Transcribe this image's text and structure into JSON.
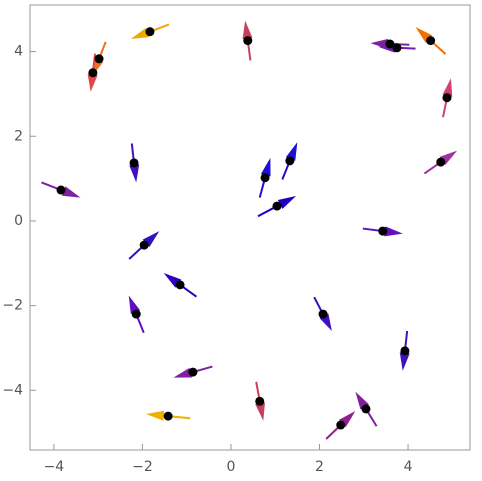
{
  "chart_data": {
    "type": "vector",
    "xlim": [
      -4.54,
      5.4
    ],
    "ylim": [
      -5.41,
      5.1
    ],
    "xticks": [
      {
        "value": -4,
        "label": "−4"
      },
      {
        "value": -2,
        "label": "−2"
      },
      0,
      2,
      4
    ],
    "yticks": [
      {
        "value": -4,
        "label": "−4"
      },
      {
        "value": -2,
        "label": "−2"
      },
      0,
      2,
      4
    ],
    "point_color": "#000000",
    "x": [
      -1.83,
      -2.98,
      -3.12,
      0.38,
      3.59,
      3.75,
      4.51,
      4.88,
      4.74,
      -2.19,
      -3.84,
      0.77,
      1.33,
      1.04,
      3.43,
      -1.96,
      -1.15,
      -2.14,
      2.08,
      3.93,
      -0.86,
      -1.42,
      0.65,
      2.48,
      3.05
    ],
    "y": [
      4.47,
      3.83,
      3.5,
      4.26,
      4.18,
      4.09,
      4.26,
      2.91,
      1.39,
      1.37,
      0.73,
      1.02,
      1.42,
      0.35,
      -0.24,
      -0.57,
      -1.51,
      -2.2,
      -2.2,
      -3.07,
      -3.57,
      -4.61,
      -4.26,
      -4.82,
      -4.44
    ],
    "dx": [
      -0.43,
      -0.15,
      -0.05,
      -0.06,
      -0.44,
      -0.42,
      -0.34,
      0.09,
      0.37,
      0.05,
      0.44,
      0.12,
      0.17,
      0.43,
      0.45,
      0.34,
      -0.37,
      -0.17,
      0.2,
      -0.05,
      -0.44,
      -0.5,
      0.08,
      0.33,
      -0.24
    ],
    "dy": [
      -0.17,
      -0.4,
      -0.45,
      0.47,
      0.02,
      0.02,
      0.32,
      0.46,
      0.27,
      -0.46,
      -0.18,
      0.47,
      0.44,
      0.24,
      -0.06,
      0.33,
      0.28,
      0.44,
      -0.4,
      -0.47,
      -0.13,
      0.05,
      -0.46,
      0.33,
      0.41
    ],
    "colors": [
      "#f0a800",
      "#f07020",
      "#e04848",
      "#c84060",
      "#8020a0",
      "#7020b0",
      "#f07000",
      "#d04070",
      "#a030a0",
      "#4010c0",
      "#8020a0",
      "#2010d0",
      "#2010d0",
      "#2000c0",
      "#6010c0",
      "#3010c0",
      "#3000c0",
      "#6010c0",
      "#4010c0",
      "#4010c0",
      "#8020a0",
      "#f0b000",
      "#c84060",
      "#902090",
      "#8020a0"
    ]
  }
}
